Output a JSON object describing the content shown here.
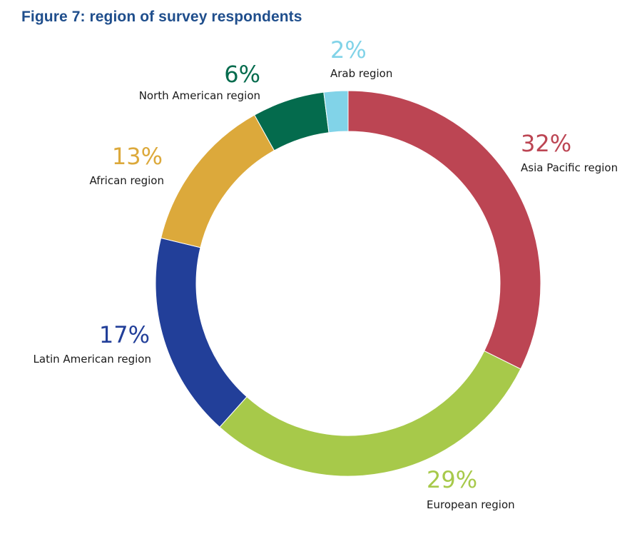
{
  "chart_data": {
    "type": "pie",
    "variant": "donut",
    "title": "Figure 7: region of survey respondents",
    "unit": "%",
    "slices": [
      {
        "label": "Asia Pacific region",
        "value": 32,
        "display": "32%",
        "color": "#bc4553"
      },
      {
        "label": "European region",
        "value": 29,
        "display": "29%",
        "color": "#a7c94a"
      },
      {
        "label": "Latin American region",
        "value": 17,
        "display": "17%",
        "color": "#223f99"
      },
      {
        "label": "African region",
        "value": 13,
        "display": "13%",
        "color": "#dca93b"
      },
      {
        "label": "North American region",
        "value": 6,
        "display": "6%",
        "color": "#046b4d"
      },
      {
        "label": "Arab region",
        "value": 2,
        "display": "2%",
        "color": "#81d3e8"
      }
    ]
  }
}
